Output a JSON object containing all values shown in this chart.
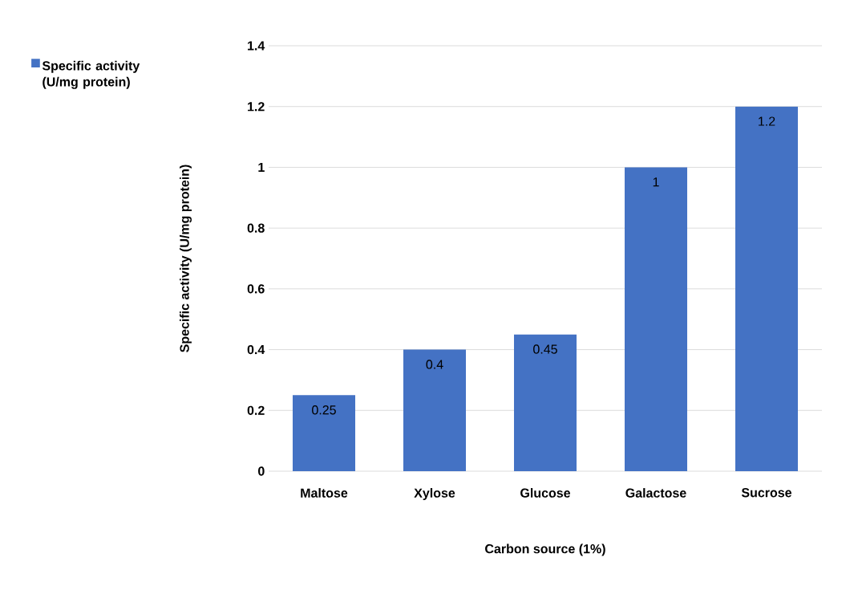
{
  "chart_data": {
    "type": "bar",
    "xlabel": "Carbon source (1%)",
    "ylabel": "Specific activity (U/mg protein)",
    "categories": [
      "Maltose",
      "Xylose",
      "Glucose",
      "Galactose",
      "Sucrose"
    ],
    "series": [
      {
        "name": "Specific activity (U/mg protein)",
        "color": "#4472c4",
        "values": [
          0.25,
          0.4,
          0.45,
          1,
          1.2
        ]
      }
    ],
    "ylim": [
      0,
      1.4
    ],
    "yticks": [
      0,
      0.2,
      0.4,
      0.6,
      0.8,
      1,
      1.2,
      1.4
    ],
    "grid": "y",
    "legend": "top left",
    "data_labels": true
  }
}
